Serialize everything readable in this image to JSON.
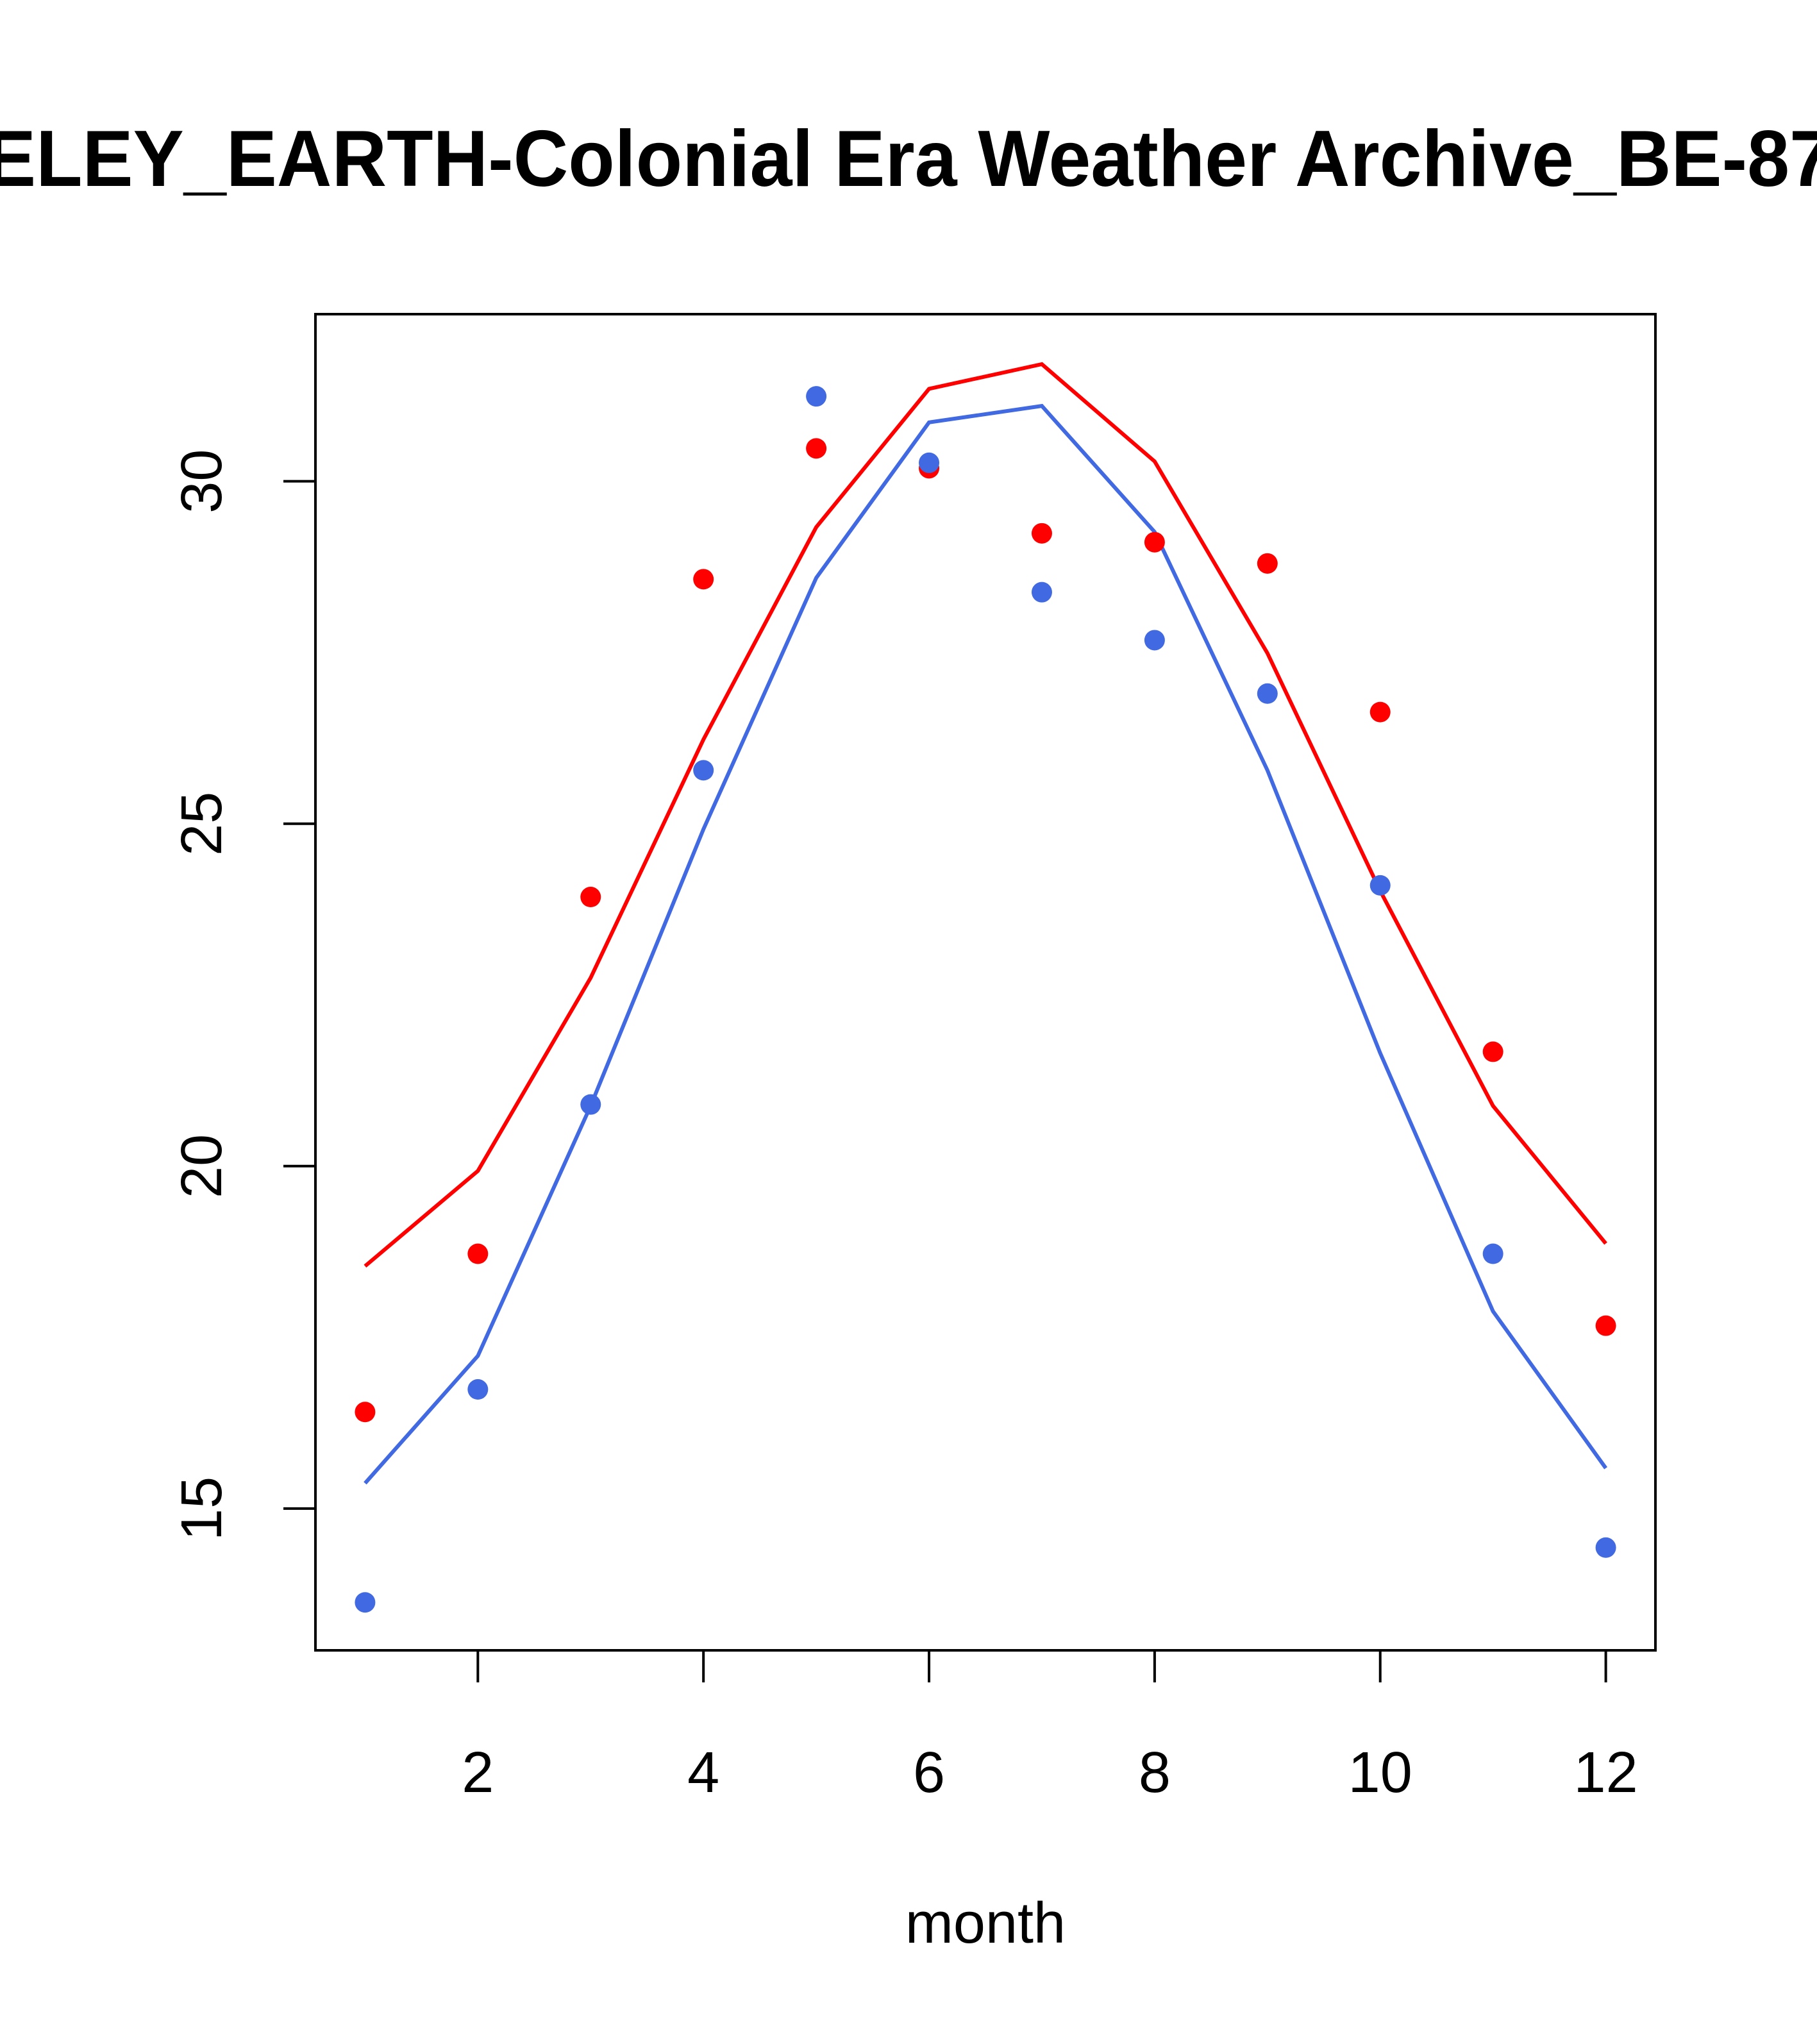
{
  "chart_data": {
    "type": "scatter",
    "title": "ELEY_EARTH-Colonial Era Weather Archive_BE-87",
    "xlabel": "month",
    "ylabel": "",
    "xlim": [
      0.56,
      12.44
    ],
    "ylim": [
      12.93,
      32.44
    ],
    "x_ticks": [
      2,
      4,
      6,
      8,
      10,
      12
    ],
    "x_tick_labels": [
      "2",
      "4",
      "6",
      "8",
      "10",
      "12"
    ],
    "y_ticks": [
      15,
      20,
      25,
      30
    ],
    "y_tick_labels": [
      "15",
      "20",
      "25",
      "30"
    ],
    "grid": false,
    "x": [
      1,
      2,
      3,
      4,
      5,
      6,
      7,
      8,
      9,
      10,
      11,
      12
    ],
    "series": [
      {
        "name": "red points",
        "kind": "points",
        "color": "#ff0000",
        "values": [
          16.41,
          18.72,
          23.93,
          28.57,
          30.48,
          30.19,
          29.24,
          29.11,
          28.8,
          26.63,
          21.67,
          17.67
        ]
      },
      {
        "name": "blue points",
        "kind": "points",
        "color": "#4169e1",
        "values": [
          13.63,
          16.74,
          20.9,
          25.78,
          31.24,
          30.27,
          28.38,
          27.68,
          26.9,
          24.1,
          18.72,
          14.43
        ]
      },
      {
        "name": "red line",
        "kind": "line",
        "color": "#ff0000",
        "values": [
          18.54,
          19.93,
          22.75,
          26.23,
          29.33,
          31.35,
          31.71,
          30.29,
          27.49,
          24.02,
          20.88,
          18.87
        ]
      },
      {
        "name": "blue line",
        "kind": "line",
        "color": "#4169e1",
        "values": [
          15.37,
          17.23,
          20.88,
          24.92,
          28.59,
          30.86,
          31.1,
          29.26,
          25.78,
          21.65,
          17.88,
          15.59
        ]
      }
    ]
  }
}
